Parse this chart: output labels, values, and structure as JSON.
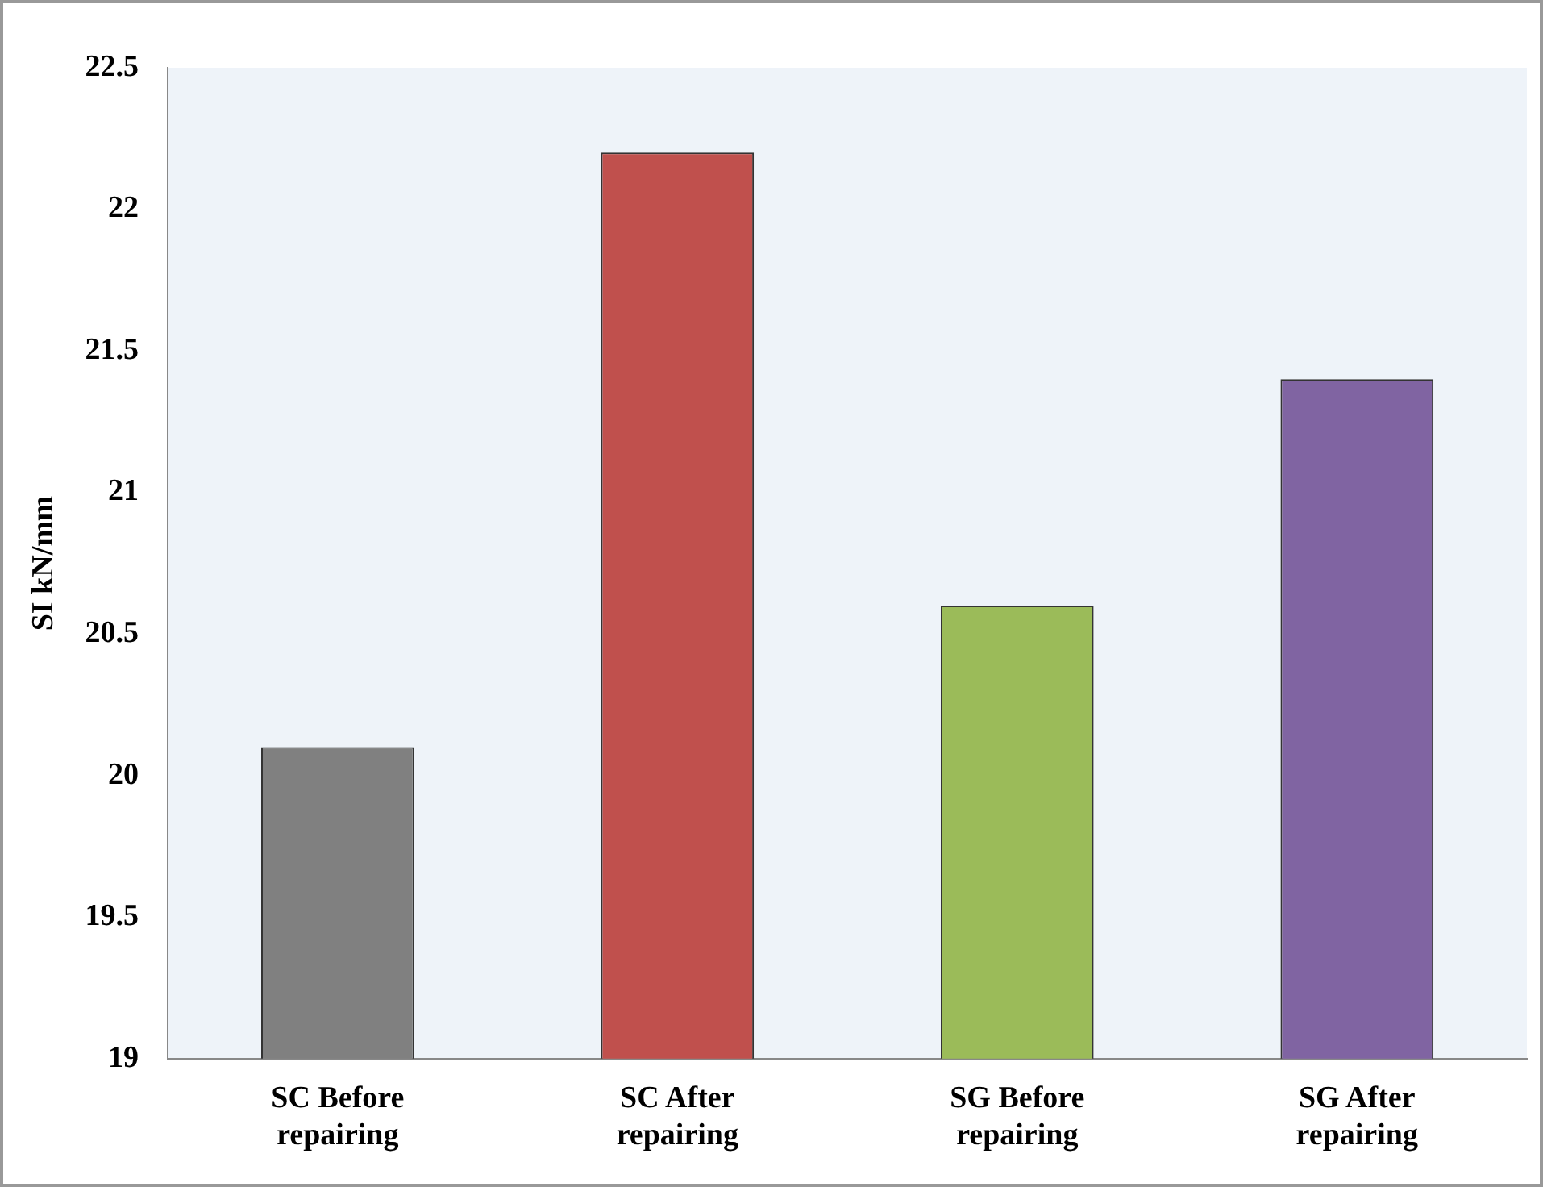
{
  "chart_data": {
    "type": "bar",
    "ylabel": "SI kN/mm",
    "categories": [
      "SC Before repairing",
      "SC After repairing",
      "SG Before repairing",
      "SG After repairing"
    ],
    "values": [
      20.1,
      22.2,
      20.6,
      21.4
    ],
    "colors": [
      "#808080",
      "#c0504d",
      "#9bbb59",
      "#8064a2"
    ],
    "ylim": [
      19,
      22.5
    ],
    "yticks": [
      19,
      19.5,
      20,
      20.5,
      21,
      21.5,
      22,
      22.5
    ],
    "grid": false,
    "legend": false
  }
}
